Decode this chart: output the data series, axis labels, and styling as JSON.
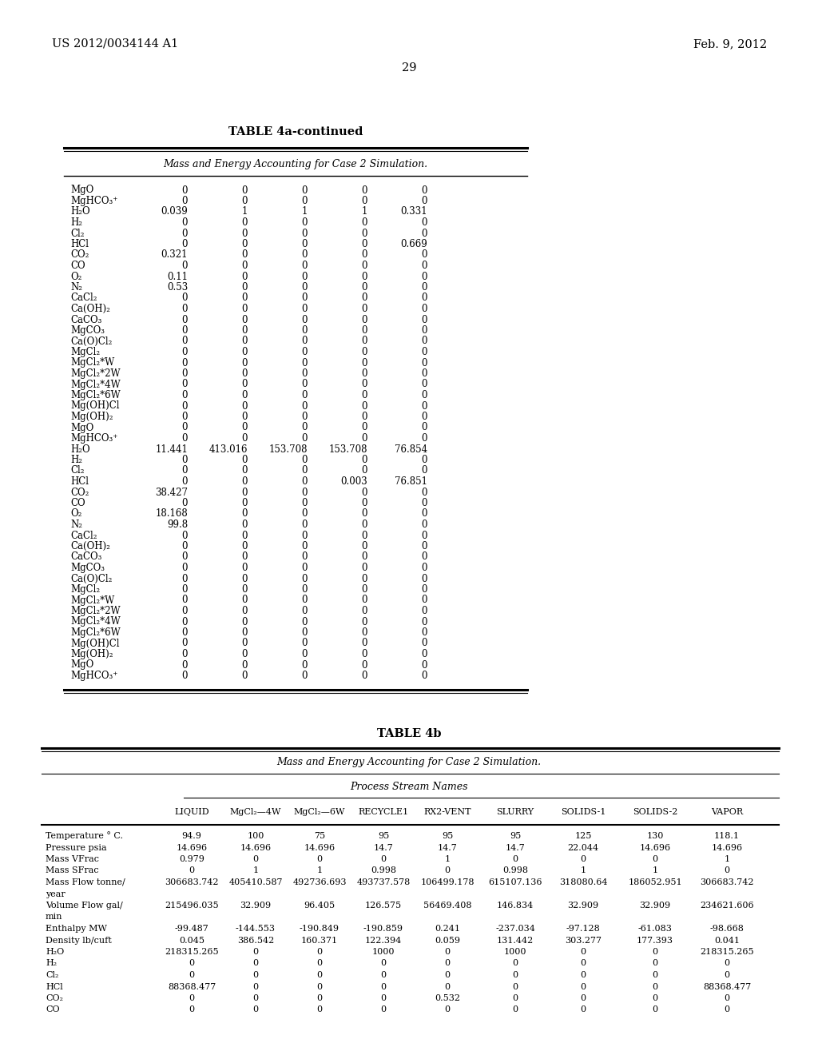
{
  "page_header_left": "US 2012/0034144 A1",
  "page_header_right": "Feb. 9, 2012",
  "page_number": "29",
  "table4a_title": "TABLE 4a-continued",
  "table4a_subtitle": "Mass and Energy Accounting for Case 2 Simulation.",
  "table4a_rows": [
    [
      "MgO",
      "0",
      "0",
      "0",
      "0",
      "0"
    ],
    [
      "MgHCO₃⁺",
      "0",
      "0",
      "0",
      "0",
      "0"
    ],
    [
      "H₂O",
      "0.039",
      "1",
      "1",
      "1",
      "0.331"
    ],
    [
      "H₂",
      "0",
      "0",
      "0",
      "0",
      "0"
    ],
    [
      "Cl₂",
      "0",
      "0",
      "0",
      "0",
      "0"
    ],
    [
      "HCl",
      "0",
      "0",
      "0",
      "0",
      "0.669"
    ],
    [
      "CO₂",
      "0.321",
      "0",
      "0",
      "0",
      "0"
    ],
    [
      "CO",
      "0",
      "0",
      "0",
      "0",
      "0"
    ],
    [
      "O₂",
      "0.11",
      "0",
      "0",
      "0",
      "0"
    ],
    [
      "N₂",
      "0.53",
      "0",
      "0",
      "0",
      "0"
    ],
    [
      "CaCl₂",
      "0",
      "0",
      "0",
      "0",
      "0"
    ],
    [
      "Ca(OH)₂",
      "0",
      "0",
      "0",
      "0",
      "0"
    ],
    [
      "CaCO₃",
      "0",
      "0",
      "0",
      "0",
      "0"
    ],
    [
      "MgCO₃",
      "0",
      "0",
      "0",
      "0",
      "0"
    ],
    [
      "Ca(O)Cl₂",
      "0",
      "0",
      "0",
      "0",
      "0"
    ],
    [
      "MgCl₂",
      "0",
      "0",
      "0",
      "0",
      "0"
    ],
    [
      "MgCl₂*W",
      "0",
      "0",
      "0",
      "0",
      "0"
    ],
    [
      "MgCl₂*2W",
      "0",
      "0",
      "0",
      "0",
      "0"
    ],
    [
      "MgCl₂*4W",
      "0",
      "0",
      "0",
      "0",
      "0"
    ],
    [
      "MgCl₂*6W",
      "0",
      "0",
      "0",
      "0",
      "0"
    ],
    [
      "Mg(OH)Cl",
      "0",
      "0",
      "0",
      "0",
      "0"
    ],
    [
      "Mg(OH)₂",
      "0",
      "0",
      "0",
      "0",
      "0"
    ],
    [
      "MgO",
      "0",
      "0",
      "0",
      "0",
      "0"
    ],
    [
      "MgHCO₃⁺",
      "0",
      "0",
      "0",
      "0",
      "0"
    ],
    [
      "H₂O",
      "11.441",
      "413.016",
      "153.708",
      "153.708",
      "76.854"
    ],
    [
      "H₂",
      "0",
      "0",
      "0",
      "0",
      "0"
    ],
    [
      "Cl₂",
      "0",
      "0",
      "0",
      "0",
      "0"
    ],
    [
      "HCl",
      "0",
      "0",
      "0",
      "0.003",
      "76.851"
    ],
    [
      "CO₂",
      "38.427",
      "0",
      "0",
      "0",
      "0"
    ],
    [
      "CO",
      "0",
      "0",
      "0",
      "0",
      "0"
    ],
    [
      "O₂",
      "18.168",
      "0",
      "0",
      "0",
      "0"
    ],
    [
      "N₂",
      "99.8",
      "0",
      "0",
      "0",
      "0"
    ],
    [
      "CaCl₂",
      "0",
      "0",
      "0",
      "0",
      "0"
    ],
    [
      "Ca(OH)₂",
      "0",
      "0",
      "0",
      "0",
      "0"
    ],
    [
      "CaCO₃",
      "0",
      "0",
      "0",
      "0",
      "0"
    ],
    [
      "MgCO₃",
      "0",
      "0",
      "0",
      "0",
      "0"
    ],
    [
      "Ca(O)Cl₂",
      "0",
      "0",
      "0",
      "0",
      "0"
    ],
    [
      "MgCl₂",
      "0",
      "0",
      "0",
      "0",
      "0"
    ],
    [
      "MgCl₂*W",
      "0",
      "0",
      "0",
      "0",
      "0"
    ],
    [
      "MgCl₂*2W",
      "0",
      "0",
      "0",
      "0",
      "0"
    ],
    [
      "MgCl₂*4W",
      "0",
      "0",
      "0",
      "0",
      "0"
    ],
    [
      "MgCl₂*6W",
      "0",
      "0",
      "0",
      "0",
      "0"
    ],
    [
      "Mg(OH)Cl",
      "0",
      "0",
      "0",
      "0",
      "0"
    ],
    [
      "Mg(OH)₂",
      "0",
      "0",
      "0",
      "0",
      "0"
    ],
    [
      "MgO",
      "0",
      "0",
      "0",
      "0",
      "0"
    ],
    [
      "MgHCO₃⁺",
      "0",
      "0",
      "0",
      "0",
      "0"
    ]
  ],
  "table4b_title": "TABLE 4b",
  "table4b_subtitle": "Mass and Energy Accounting for Case 2 Simulation.",
  "table4b_stream_label": "Process Stream Names",
  "table4b_col_headers": [
    "",
    "LIQUID",
    "MgCl₂—4W",
    "MgCl₂—6W",
    "RECYCLE1",
    "RX2-VENT",
    "SLURRY",
    "SOLIDS-1",
    "SOLIDS-2",
    "VAPOR"
  ],
  "table4b_rows": [
    [
      "Temperature ° C.",
      "94.9",
      "100",
      "75",
      "95",
      "95",
      "95",
      "125",
      "130",
      "118.1"
    ],
    [
      "Pressure psia",
      "14.696",
      "14.696",
      "14.696",
      "14.7",
      "14.7",
      "14.7",
      "22.044",
      "14.696",
      "14.696"
    ],
    [
      "Mass VFrac",
      "0.979",
      "0",
      "0",
      "0",
      "1",
      "0",
      "0",
      "0",
      "1"
    ],
    [
      "Mass SFrac",
      "0",
      "1",
      "1",
      "0.998",
      "0",
      "0.998",
      "1",
      "1",
      "0"
    ],
    [
      "Mass Flow tonne/",
      "306683.742",
      "405410.587",
      "492736.693",
      "493737.578",
      "106499.178",
      "615107.136",
      "318080.64",
      "186052.951",
      "306683.742"
    ],
    [
      "year",
      "",
      "",
      "",
      "",
      "",
      "",
      "",
      "",
      ""
    ],
    [
      "Volume Flow gal/",
      "215496.035",
      "32.909",
      "96.405",
      "126.575",
      "56469.408",
      "146.834",
      "32.909",
      "32.909",
      "234621.606"
    ],
    [
      "min",
      "",
      "",
      "",
      "",
      "",
      "",
      "",
      "",
      ""
    ],
    [
      "Enthalpy MW",
      "-99.487",
      "-144.553",
      "-190.849",
      "-190.859",
      "0.241",
      "-237.034",
      "-97.128",
      "-61.083",
      "-98.668"
    ],
    [
      "Density lb/cuft",
      "0.045",
      "386.542",
      "160.371",
      "122.394",
      "0.059",
      "131.442",
      "303.277",
      "177.393",
      "0.041"
    ],
    [
      "H₂O",
      "218315.265",
      "0",
      "0",
      "1000",
      "0",
      "1000",
      "0",
      "0",
      "218315.265"
    ],
    [
      "H₂",
      "0",
      "0",
      "0",
      "0",
      "0",
      "0",
      "0",
      "0",
      "0"
    ],
    [
      "Cl₂",
      "0",
      "0",
      "0",
      "0",
      "0",
      "0",
      "0",
      "0",
      "0"
    ],
    [
      "HCl",
      "88368.477",
      "0",
      "0",
      "0",
      "0",
      "0",
      "0",
      "0",
      "88368.477"
    ],
    [
      "CO₂",
      "0",
      "0",
      "0",
      "0",
      "0.532",
      "0",
      "0",
      "0",
      "0"
    ],
    [
      "CO",
      "0",
      "0",
      "0",
      "0",
      "0",
      "0",
      "0",
      "0",
      "0"
    ]
  ]
}
